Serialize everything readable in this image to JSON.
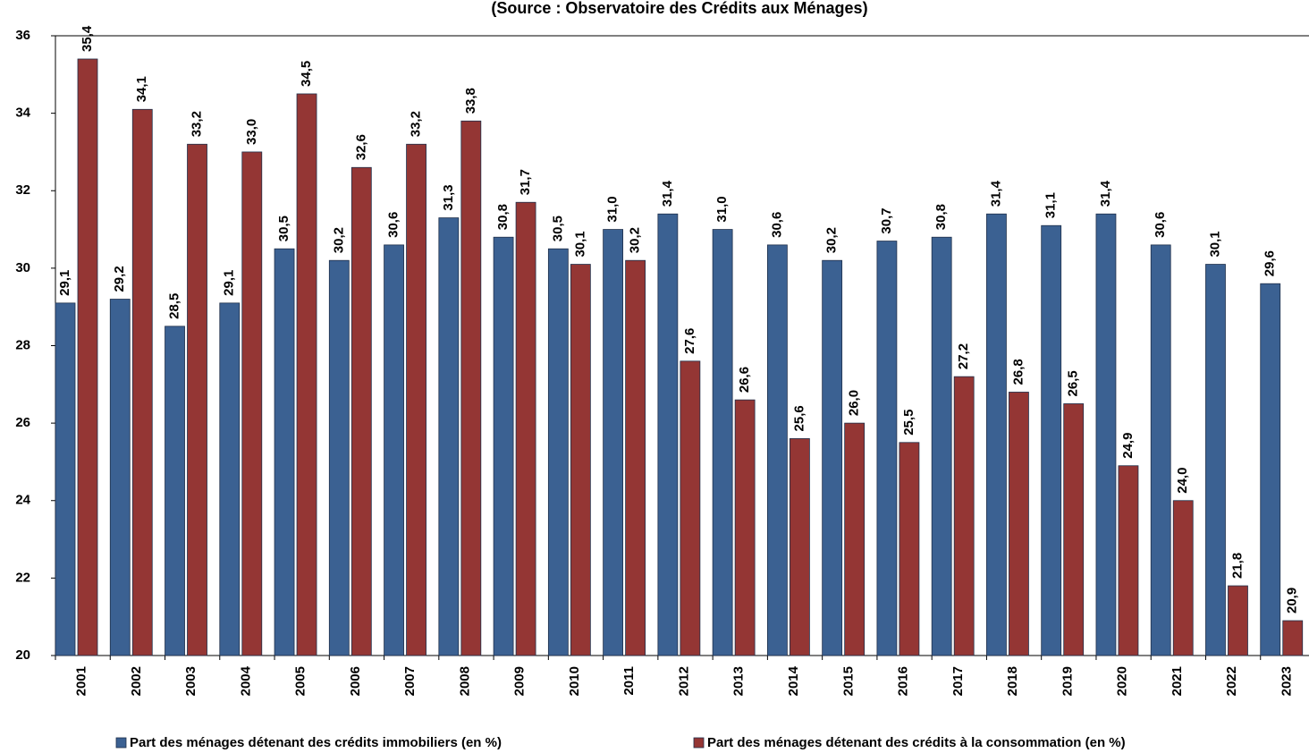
{
  "chart_data": {
    "type": "bar",
    "subtitle": "(Source : Observatoire des Crédits aux Ménages)",
    "categories": [
      "2001",
      "2002",
      "2003",
      "2004",
      "2005",
      "2006",
      "2007",
      "2008",
      "2009",
      "2010",
      "2011",
      "2012",
      "2013",
      "2014",
      "2015",
      "2016",
      "2017",
      "2018",
      "2019",
      "2020",
      "2021",
      "2022",
      "2023"
    ],
    "series": [
      {
        "name": "Part des ménages détenant des crédits immobiliers (en %)",
        "color": "#3b6192",
        "values": [
          29.1,
          29.2,
          28.5,
          29.1,
          30.5,
          30.2,
          30.6,
          31.3,
          30.8,
          30.5,
          31.0,
          31.4,
          31.0,
          30.6,
          30.2,
          30.7,
          30.8,
          31.4,
          31.1,
          31.4,
          30.6,
          30.1,
          29.6
        ],
        "value_labels": [
          "29,1",
          "29,2",
          "28,5",
          "29,1",
          "30,5",
          "30,2",
          "30,6",
          "31,3",
          "30,8",
          "30,5",
          "31,0",
          "31,4",
          "31,0",
          "30,6",
          "30,2",
          "30,7",
          "30,8",
          "31,4",
          "31,1",
          "31,4",
          "30,6",
          "30,1",
          "29,6"
        ]
      },
      {
        "name": "Part des ménages détenant des crédits à la consommation (en %)",
        "color": "#943634",
        "values": [
          35.4,
          34.1,
          33.2,
          33.0,
          34.5,
          32.6,
          33.2,
          33.8,
          31.7,
          30.1,
          30.2,
          27.6,
          26.6,
          25.6,
          26.0,
          25.5,
          27.2,
          26.8,
          26.5,
          24.9,
          24.0,
          21.8,
          20.9
        ],
        "value_labels": [
          "35,4",
          "34,1",
          "33,2",
          "33,0",
          "34,5",
          "32,6",
          "33,2",
          "33,8",
          "31,7",
          "30,1",
          "30,2",
          "27,6",
          "26,6",
          "25,6",
          "26,0",
          "25,5",
          "27,2",
          "26,8",
          "26,5",
          "24,9",
          "24,0",
          "21,8",
          "20,9"
        ]
      }
    ],
    "ylim": [
      20,
      36
    ],
    "yticks": [
      20,
      22,
      24,
      26,
      28,
      30,
      32,
      34,
      36
    ],
    "grid": false,
    "legend": "bottom"
  }
}
